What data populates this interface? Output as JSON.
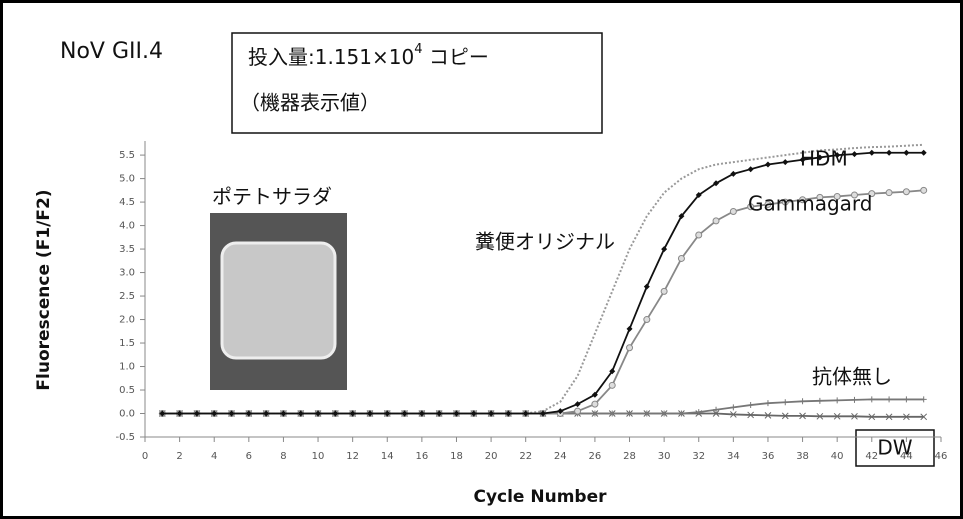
{
  "chart_data": {
    "type": "line",
    "title": "NoV GII.4",
    "amount": {
      "text": "投入量:1.151×10",
      "exponent": "4",
      "unit": " コピー"
    },
    "note": "（機器表示値）",
    "sample": "ポテトサラダ",
    "x_label": "Cycle Number",
    "y_label": "Fluorescence (F1/F2)",
    "xlim": [
      0,
      46
    ],
    "xticks": [
      0,
      2,
      4,
      6,
      8,
      10,
      12,
      14,
      16,
      18,
      20,
      22,
      24,
      26,
      28,
      30,
      32,
      34,
      36,
      38,
      40,
      42,
      44,
      46
    ],
    "ylim": [
      -0.5,
      5.8
    ],
    "yticks": [
      -0.5,
      {
        "value": 0,
        "label": "0.0"
      },
      0.5,
      {
        "value": 1,
        "label": "1.0"
      },
      1.5,
      {
        "value": 2,
        "label": "2.0"
      },
      2.5,
      {
        "value": 3,
        "label": "3.0"
      },
      3.5,
      {
        "value": 4,
        "label": "4.0"
      },
      4.5,
      {
        "value": 5,
        "label": "5.0"
      },
      5.5
    ],
    "grid": false,
    "x": [
      1,
      2,
      3,
      4,
      5,
      6,
      7,
      8,
      9,
      10,
      11,
      12,
      13,
      14,
      15,
      16,
      17,
      18,
      19,
      20,
      21,
      22,
      23,
      24,
      25,
      26,
      27,
      28,
      29,
      30,
      31,
      32,
      33,
      34,
      35,
      36,
      37,
      38,
      39,
      40,
      41,
      42,
      43,
      44,
      45
    ],
    "series": [
      {
        "name": "HDM",
        "color": "#111111",
        "dash": false,
        "marker": "diamond",
        "values": [
          0,
          0,
          0,
          0,
          0,
          0,
          0,
          0,
          0,
          0,
          0,
          0,
          0,
          0,
          0,
          0,
          0,
          0,
          0,
          0,
          0,
          0,
          0,
          0.05,
          0.2,
          0.4,
          0.9,
          1.8,
          2.7,
          3.5,
          4.2,
          4.65,
          4.9,
          5.1,
          5.2,
          5.3,
          5.35,
          5.4,
          5.45,
          5.5,
          5.52,
          5.55,
          5.55,
          5.55,
          5.55
        ]
      },
      {
        "name": "Gammagard",
        "color": "#888888",
        "dash": false,
        "marker": "circle",
        "values": [
          0,
          0,
          0,
          0,
          0,
          0,
          0,
          0,
          0,
          0,
          0,
          0,
          0,
          0,
          0,
          0,
          0,
          0,
          0,
          0,
          0,
          0,
          0,
          0,
          0.05,
          0.2,
          0.6,
          1.4,
          2.0,
          2.6,
          3.3,
          3.8,
          4.1,
          4.3,
          4.4,
          4.45,
          4.5,
          4.55,
          4.6,
          4.62,
          4.65,
          4.68,
          4.7,
          4.72,
          4.75
        ]
      },
      {
        "name": "糞便オリジナル",
        "color": "#999999",
        "dash": true,
        "marker": "none",
        "values": [
          0,
          0,
          0,
          0,
          0,
          0,
          0,
          0,
          0,
          0,
          0,
          0,
          0,
          0,
          0,
          0,
          0,
          0,
          0,
          0,
          0,
          0,
          0.05,
          0.25,
          0.8,
          1.7,
          2.6,
          3.5,
          4.2,
          4.7,
          5.0,
          5.2,
          5.3,
          5.35,
          5.4,
          5.45,
          5.5,
          5.55,
          5.6,
          5.62,
          5.65,
          5.67,
          5.68,
          5.7,
          5.72
        ]
      },
      {
        "name": "抗体無し",
        "color": "#777777",
        "dash": false,
        "marker": "plus",
        "values": [
          0,
          0,
          0,
          0,
          0,
          0,
          0,
          0,
          0,
          0,
          0,
          0,
          0,
          0,
          0,
          0,
          0,
          0,
          0,
          0,
          0,
          0,
          0,
          0,
          0,
          0,
          0,
          0,
          0,
          0,
          0,
          0.03,
          0.08,
          0.13,
          0.18,
          0.22,
          0.24,
          0.26,
          0.27,
          0.28,
          0.29,
          0.3,
          0.3,
          0.3,
          0.3
        ]
      },
      {
        "name": "DW",
        "color": "#666666",
        "dash": false,
        "marker": "cross",
        "values": [
          0,
          0,
          0,
          0,
          0,
          0,
          0,
          0,
          0,
          0,
          0,
          0,
          0,
          0,
          0,
          0,
          0,
          0,
          0,
          0,
          0,
          0,
          0,
          0,
          0,
          0,
          0,
          0,
          0,
          0,
          0,
          0,
          0,
          -0.02,
          -0.03,
          -0.04,
          -0.05,
          -0.05,
          -0.06,
          -0.06,
          -0.06,
          -0.07,
          -0.07,
          -0.07,
          -0.07
        ]
      }
    ]
  }
}
